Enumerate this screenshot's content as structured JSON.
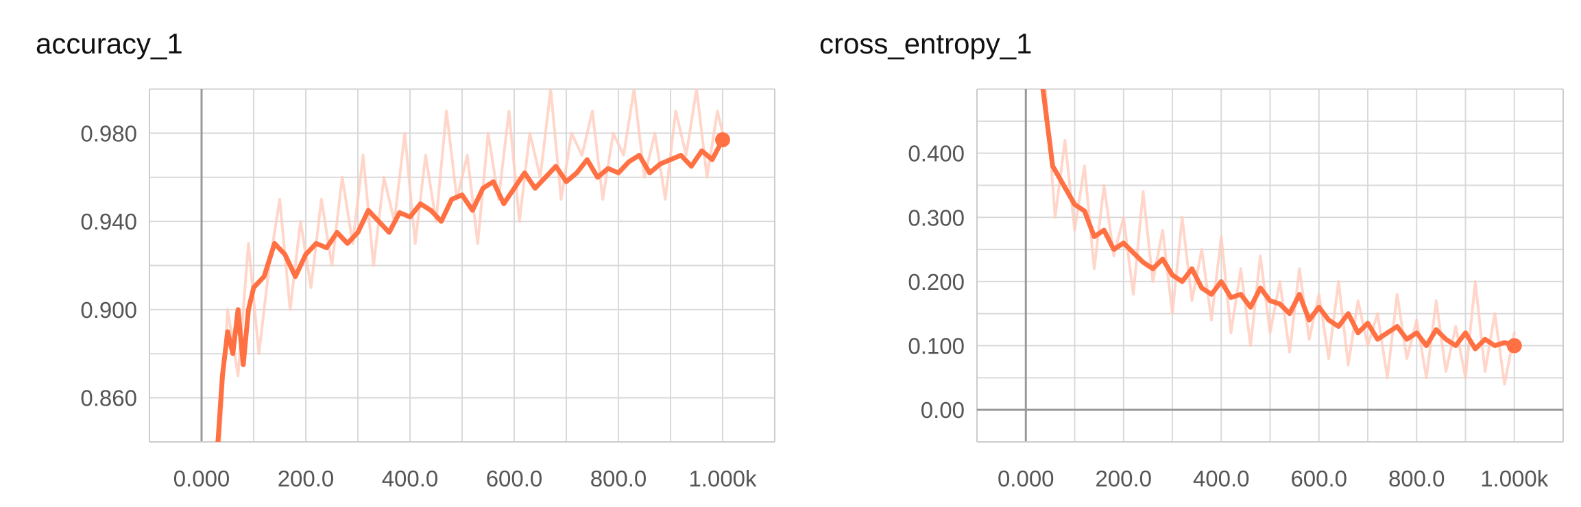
{
  "chart_data": [
    {
      "type": "line",
      "title": "accuracy_1",
      "xlabel": "",
      "ylabel": "",
      "xlim": [
        -100,
        1100
      ],
      "ylim": [
        0.84,
        1.0
      ],
      "grid": true,
      "x_ticks": [
        0,
        200,
        400,
        600,
        800,
        1000
      ],
      "x_tick_labels": [
        "0.000",
        "200.0",
        "400.0",
        "600.0",
        "800.0",
        "1.000k"
      ],
      "y_ticks": [
        0.86,
        0.9,
        0.94,
        0.98
      ],
      "y_tick_labels": [
        "0.860",
        "0.900",
        "0.940",
        "0.980"
      ],
      "colors": {
        "smoothed": "#ff7043",
        "raw": "#ffccbc"
      },
      "series": [
        {
          "style": "raw",
          "x": [
            30,
            50,
            70,
            90,
            110,
            130,
            150,
            170,
            190,
            210,
            230,
            250,
            270,
            290,
            310,
            330,
            350,
            370,
            390,
            410,
            430,
            450,
            470,
            490,
            510,
            530,
            550,
            570,
            590,
            610,
            630,
            650,
            670,
            690,
            710,
            730,
            750,
            770,
            790,
            810,
            830,
            850,
            870,
            890,
            910,
            930,
            950,
            970,
            990,
            1000
          ],
          "y": [
            0.82,
            0.9,
            0.87,
            0.93,
            0.88,
            0.92,
            0.95,
            0.9,
            0.94,
            0.91,
            0.95,
            0.92,
            0.96,
            0.93,
            0.97,
            0.92,
            0.96,
            0.94,
            0.98,
            0.93,
            0.97,
            0.94,
            0.99,
            0.95,
            0.97,
            0.93,
            0.98,
            0.95,
            0.99,
            0.94,
            0.98,
            0.96,
            1.0,
            0.95,
            0.98,
            0.97,
            0.99,
            0.95,
            0.98,
            0.97,
            1.0,
            0.96,
            0.98,
            0.95,
            0.99,
            0.97,
            1.0,
            0.96,
            0.99,
            0.98
          ]
        },
        {
          "style": "smoothed",
          "x": [
            30,
            40,
            50,
            60,
            70,
            80,
            90,
            100,
            120,
            140,
            160,
            180,
            200,
            220,
            240,
            260,
            280,
            300,
            320,
            340,
            360,
            380,
            400,
            420,
            440,
            460,
            480,
            500,
            520,
            540,
            560,
            580,
            600,
            620,
            640,
            660,
            680,
            700,
            720,
            740,
            760,
            780,
            800,
            820,
            840,
            860,
            880,
            900,
            920,
            940,
            960,
            980,
            1000
          ],
          "y": [
            0.835,
            0.87,
            0.89,
            0.88,
            0.9,
            0.875,
            0.9,
            0.91,
            0.915,
            0.93,
            0.925,
            0.915,
            0.925,
            0.93,
            0.928,
            0.935,
            0.93,
            0.935,
            0.945,
            0.94,
            0.935,
            0.944,
            0.942,
            0.948,
            0.945,
            0.94,
            0.95,
            0.952,
            0.945,
            0.955,
            0.958,
            0.948,
            0.955,
            0.962,
            0.955,
            0.96,
            0.965,
            0.958,
            0.962,
            0.968,
            0.96,
            0.964,
            0.962,
            0.967,
            0.97,
            0.962,
            0.966,
            0.968,
            0.97,
            0.965,
            0.972,
            0.968,
            0.977
          ]
        }
      ]
    },
    {
      "type": "line",
      "title": "cross_entropy_1",
      "xlabel": "",
      "ylabel": "",
      "xlim": [
        -100,
        1100
      ],
      "ylim": [
        -0.05,
        0.5
      ],
      "grid": true,
      "x_ticks": [
        0,
        200,
        400,
        600,
        800,
        1000
      ],
      "x_tick_labels": [
        "0.000",
        "200.0",
        "400.0",
        "600.0",
        "800.0",
        "1.000k"
      ],
      "y_ticks": [
        0.0,
        0.1,
        0.2,
        0.3,
        0.4
      ],
      "y_tick_labels": [
        "0.00",
        "0.100",
        "0.200",
        "0.300",
        "0.400"
      ],
      "colors": {
        "smoothed": "#ff7043",
        "raw": "#ffccbc"
      },
      "series": [
        {
          "style": "raw",
          "x": [
            40,
            60,
            80,
            100,
            120,
            140,
            160,
            180,
            200,
            220,
            240,
            260,
            280,
            300,
            320,
            340,
            360,
            380,
            400,
            420,
            440,
            460,
            480,
            500,
            520,
            540,
            560,
            580,
            600,
            620,
            640,
            660,
            680,
            700,
            720,
            740,
            760,
            780,
            800,
            820,
            840,
            860,
            880,
            900,
            920,
            940,
            960,
            980,
            1000
          ],
          "y": [
            0.5,
            0.3,
            0.42,
            0.28,
            0.38,
            0.22,
            0.35,
            0.24,
            0.3,
            0.18,
            0.34,
            0.2,
            0.28,
            0.15,
            0.3,
            0.17,
            0.25,
            0.14,
            0.27,
            0.12,
            0.22,
            0.1,
            0.24,
            0.12,
            0.2,
            0.09,
            0.22,
            0.11,
            0.18,
            0.08,
            0.2,
            0.07,
            0.17,
            0.1,
            0.15,
            0.05,
            0.18,
            0.08,
            0.14,
            0.05,
            0.17,
            0.06,
            0.13,
            0.05,
            0.2,
            0.06,
            0.15,
            0.04,
            0.12
          ]
        },
        {
          "style": "smoothed",
          "x": [
            35,
            45,
            55,
            70,
            85,
            100,
            120,
            140,
            160,
            180,
            200,
            220,
            240,
            260,
            280,
            300,
            320,
            340,
            360,
            380,
            400,
            420,
            440,
            460,
            480,
            500,
            520,
            540,
            560,
            580,
            600,
            620,
            640,
            660,
            680,
            700,
            720,
            740,
            760,
            780,
            800,
            820,
            840,
            860,
            880,
            900,
            920,
            940,
            960,
            980,
            1000
          ],
          "y": [
            0.5,
            0.44,
            0.38,
            0.36,
            0.34,
            0.32,
            0.31,
            0.27,
            0.28,
            0.25,
            0.26,
            0.245,
            0.23,
            0.22,
            0.235,
            0.21,
            0.2,
            0.22,
            0.19,
            0.18,
            0.2,
            0.175,
            0.18,
            0.16,
            0.19,
            0.17,
            0.165,
            0.15,
            0.18,
            0.14,
            0.16,
            0.14,
            0.13,
            0.15,
            0.12,
            0.135,
            0.11,
            0.12,
            0.13,
            0.11,
            0.12,
            0.1,
            0.125,
            0.11,
            0.1,
            0.12,
            0.095,
            0.11,
            0.1,
            0.105,
            0.1
          ]
        }
      ]
    }
  ]
}
